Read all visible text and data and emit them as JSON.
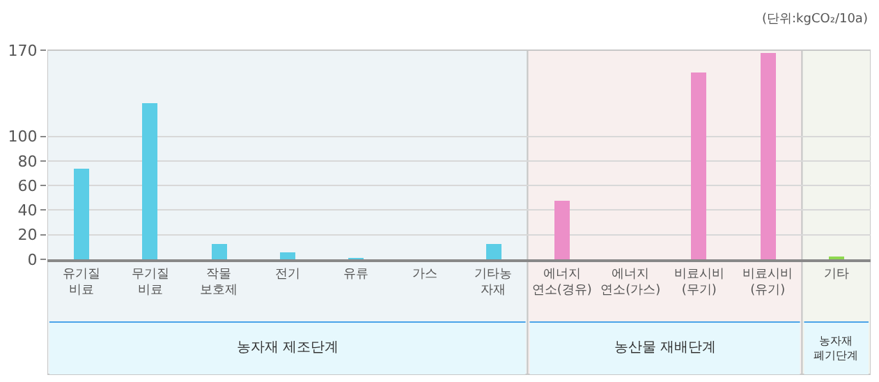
{
  "chart_data": {
    "type": "bar",
    "categories": [
      "유기질\n비료",
      "무기질\n비료",
      "작물\n보호제",
      "전기",
      "유류",
      "가스",
      "기타농\n자재",
      "에너지\n연소(경유)",
      "에너지\n연소(가스)",
      "비료시비\n(무기)",
      "비료시비\n(유기)",
      "기타"
    ],
    "values": [
      74,
      127,
      13,
      6,
      1,
      0,
      13,
      48,
      0,
      152,
      168,
      2
    ],
    "colors": [
      "#5bcde6",
      "#5bcde6",
      "#5bcde6",
      "#5bcde6",
      "#5bcde6",
      "#5bcde6",
      "#5bcde6",
      "#ec8fc8",
      "#ec8fc8",
      "#ec8fc8",
      "#ec8fc8",
      "#8ed84f"
    ],
    "ylim": [
      0,
      170
    ],
    "yticks": [
      0,
      20,
      40,
      60,
      80,
      100,
      170
    ],
    "grid": "y",
    "bands": [
      {
        "axis": "x",
        "from": "유기질\n비료",
        "to": "기타농\n자재",
        "label": "농자재 제조단계",
        "color": "#eef4f7"
      },
      {
        "axis": "x",
        "from": "에너지\n연소(경유)",
        "to": "비료시비\n(유기)",
        "label": "농산물 재배단계",
        "color": "#f8efee"
      },
      {
        "axis": "x",
        "from": "기타",
        "to": "기타",
        "label": "농자재\n폐기단계",
        "color": "#f3f5ee"
      }
    ],
    "annotations": [
      "(단위:kgCO₂/10a)"
    ]
  }
}
